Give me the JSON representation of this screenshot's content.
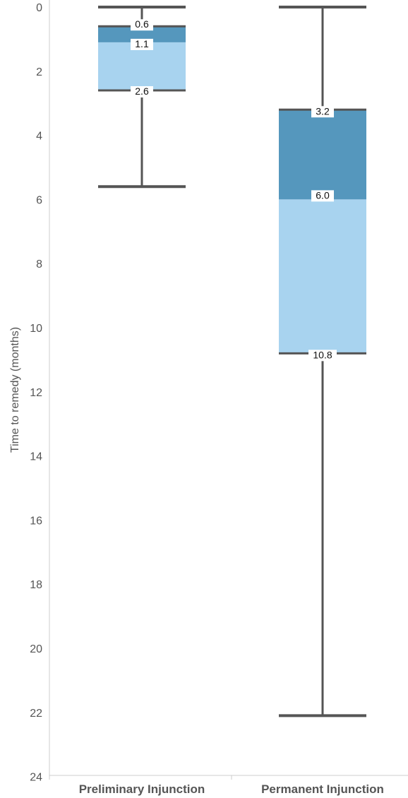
{
  "chart_data": {
    "type": "boxplot",
    "title": "",
    "ylabel": "Time to remedy (months)",
    "xlabel": "",
    "ylim": [
      0,
      24
    ],
    "y_inverted": true,
    "yticks": [
      "0",
      "2",
      "4",
      "6",
      "8",
      "10",
      "12",
      "14",
      "16",
      "18",
      "20",
      "22",
      "24"
    ],
    "grid": false,
    "colors": {
      "upper_box": "#5597bd",
      "lower_box": "#a8d3ef",
      "whisker": "#555555",
      "axis": "#cccccc"
    },
    "categories": [
      "Preliminary Injunction",
      "Permanent Injunction"
    ],
    "boxes": [
      {
        "category": "Preliminary Injunction",
        "whisker_low": 0.0,
        "q1": 0.6,
        "median": 1.1,
        "q3": 2.6,
        "whisker_high": 5.6,
        "labels": {
          "q1": "0.6",
          "median": "1.1",
          "q3": "2.6"
        }
      },
      {
        "category": "Permanent Injunction",
        "whisker_low": 0.0,
        "q1": 3.2,
        "median": 6.0,
        "q3": 10.8,
        "whisker_high": 22.1,
        "labels": {
          "q1": "3.2",
          "median": "6.0",
          "q3": "10.8"
        }
      }
    ]
  }
}
